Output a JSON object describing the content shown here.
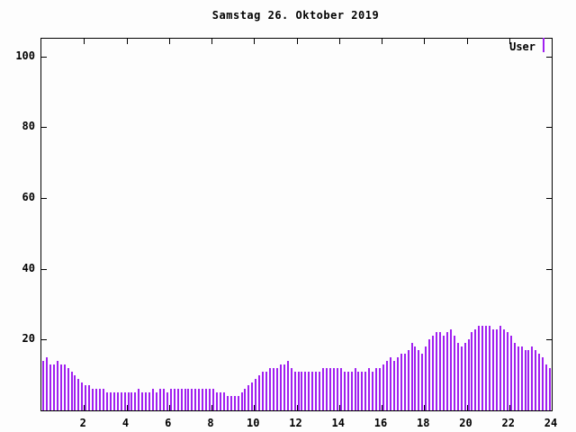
{
  "chart_data": {
    "type": "bar",
    "title": "Samstag 26. Oktober 2019",
    "series_name": "User",
    "bar_color": "#a020f0",
    "legend_position": "top-right",
    "grid": false,
    "x_start_hour": 0,
    "x_end_hour": 24,
    "interval_minutes": 10,
    "xticks": [
      2,
      4,
      6,
      8,
      10,
      12,
      14,
      16,
      18,
      20,
      22,
      24
    ],
    "yticks": [
      20,
      40,
      60,
      80,
      100
    ],
    "ylim": [
      0,
      105
    ],
    "xlabel": "",
    "ylabel": "",
    "values": [
      14,
      15,
      13,
      13,
      14,
      13,
      13,
      12,
      11,
      10,
      9,
      8,
      7,
      7,
      6,
      6,
      6,
      6,
      5,
      5,
      5,
      5,
      5,
      5,
      5,
      5,
      5,
      6,
      5,
      5,
      5,
      6,
      5,
      6,
      6,
      5,
      6,
      6,
      6,
      6,
      6,
      6,
      6,
      6,
      6,
      6,
      6,
      6,
      6,
      5,
      5,
      5,
      4,
      4,
      4,
      4,
      5,
      6,
      7,
      8,
      9,
      10,
      11,
      11,
      12,
      12,
      12,
      13,
      13,
      14,
      12,
      11,
      11,
      11,
      11,
      11,
      11,
      11,
      11,
      12,
      12,
      12,
      12,
      12,
      12,
      11,
      11,
      11,
      12,
      11,
      11,
      11,
      12,
      11,
      12,
      12,
      13,
      14,
      15,
      14,
      15,
      16,
      16,
      17,
      19,
      18,
      17,
      16,
      18,
      20,
      21,
      22,
      22,
      21,
      22,
      23,
      21,
      19,
      18,
      19,
      20,
      22,
      23,
      24,
      24,
      24,
      24,
      23,
      23,
      24,
      23,
      22,
      21,
      19,
      18,
      18,
      17,
      17,
      18,
      17,
      16,
      15,
      13,
      12
    ]
  }
}
